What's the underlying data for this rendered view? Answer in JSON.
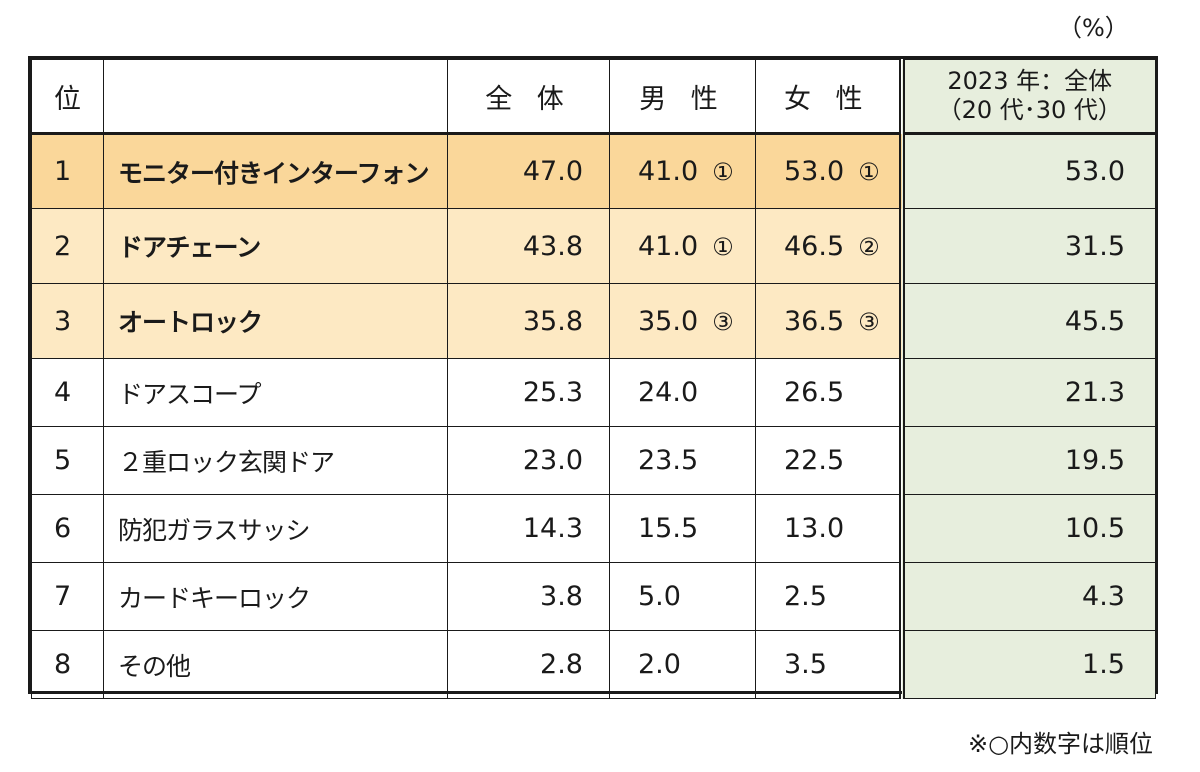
{
  "unit_label": "（%）",
  "footnote": "※○内数字は順位",
  "headers": {
    "rank": "位",
    "item": "",
    "overall": "全 体",
    "male": "男 性",
    "female": "女 性",
    "prev_line1": "2023 年：全体",
    "prev_line2": "（20 代･30 代）"
  },
  "rows": [
    {
      "rank": "1",
      "item": "モニター付きインターフォン",
      "overall": "47.0",
      "male": "41.0",
      "male_rank": "①",
      "female": "53.0",
      "female_rank": "①",
      "prev": "53.0"
    },
    {
      "rank": "2",
      "item": "ドアチェーン",
      "overall": "43.8",
      "male": "41.0",
      "male_rank": "①",
      "female": "46.5",
      "female_rank": "②",
      "prev": "31.5"
    },
    {
      "rank": "3",
      "item": "オートロック",
      "overall": "35.8",
      "male": "35.0",
      "male_rank": "③",
      "female": "36.5",
      "female_rank": "③",
      "prev": "45.5"
    },
    {
      "rank": "4",
      "item": "ドアスコープ",
      "overall": "25.3",
      "male": "24.0",
      "male_rank": "",
      "female": "26.5",
      "female_rank": "",
      "prev": "21.3"
    },
    {
      "rank": "5",
      "item": "２重ロック玄関ドア",
      "overall": "23.0",
      "male": "23.5",
      "male_rank": "",
      "female": "22.5",
      "female_rank": "",
      "prev": "19.5"
    },
    {
      "rank": "6",
      "item": "防犯ガラスサッシ",
      "overall": "14.3",
      "male": "15.5",
      "male_rank": "",
      "female": "13.0",
      "female_rank": "",
      "prev": "10.5"
    },
    {
      "rank": "7",
      "item": "カードキーロック",
      "overall": "3.8",
      "male": "5.0",
      "male_rank": "",
      "female": "2.5",
      "female_rank": "",
      "prev": "4.3"
    },
    {
      "rank": "8",
      "item": "その他",
      "overall": "2.8",
      "male": "2.0",
      "male_rank": "",
      "female": "3.5",
      "female_rank": "",
      "prev": "1.5"
    }
  ],
  "colors": {
    "top1_highlight": "#fad79a",
    "top2_3_highlight": "#fde9c3",
    "prev_column_bg": "#e7eedd"
  }
}
